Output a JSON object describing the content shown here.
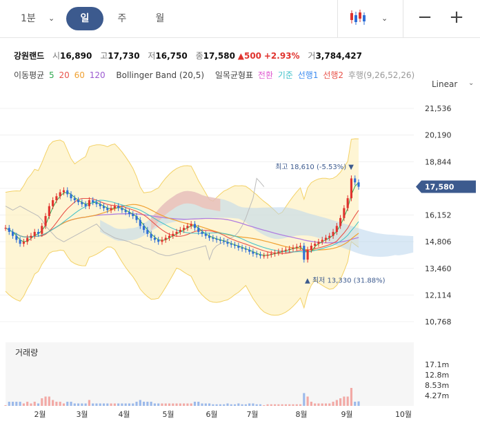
{
  "toolbar": {
    "interval_label": "1분",
    "tabs": [
      "일",
      "주",
      "월"
    ],
    "active_tab": "일"
  },
  "quote": {
    "name": "강원랜드",
    "open_label": "시",
    "open": "16,890",
    "high_label": "고",
    "high": "17,730",
    "low_label": "저",
    "low": "16,750",
    "close_label": "종",
    "close": "17,580",
    "change": "500",
    "change_pct": "+2.93%",
    "volume_label": "거",
    "volume": "3,784,427"
  },
  "indicators": {
    "ma_label": "이동평균",
    "ma_periods": [
      "5",
      "20",
      "60",
      "120"
    ],
    "ma_colors": [
      "#2fa84f",
      "#e8534a",
      "#f0a030",
      "#9b59d0"
    ],
    "bollinger_label": "Bollinger Band (20,5)",
    "ichimoku_label": "일목균형표",
    "ichimoku_items": [
      "전환",
      "기준",
      "선행1",
      "선행2"
    ],
    "ichimoku_colors": [
      "#e05bd0",
      "#3cc0c9",
      "#3d8cf0",
      "#e8534a"
    ],
    "ichimoku_lag": "후행",
    "ichimoku_lag_color": "#999999",
    "ichimoku_params": "(9,26,52,26)",
    "scale_label": "Linear"
  },
  "chart_data": {
    "type": "candlestick",
    "y_ticks": [
      "21,536",
      "20,190",
      "18,844",
      "17,580",
      "16,152",
      "14,806",
      "13,460",
      "12,114",
      "10,768"
    ],
    "y_range": [
      10768,
      21536
    ],
    "current_price": "17,580",
    "max_annotation": "최고 18,610 (-5.53%)",
    "min_annotation": "최저 13,330 (31.88%)",
    "x_labels": [
      "2월",
      "3월",
      "4월",
      "5월",
      "6월",
      "7월",
      "8월",
      "9월",
      "10월"
    ],
    "close_series": [
      15500,
      15300,
      15100,
      14900,
      14700,
      14800,
      15000,
      15100,
      15300,
      15200,
      15600,
      16100,
      16600,
      16900,
      17100,
      17300,
      17400,
      17200,
      17000,
      16900,
      16800,
      16700,
      16600,
      16900,
      16800,
      16700,
      16600,
      16500,
      16400,
      16500,
      16600,
      16500,
      16400,
      16300,
      16200,
      16100,
      15900,
      15600,
      15400,
      15200,
      15000,
      14900,
      14800,
      14900,
      15000,
      15100,
      15200,
      15300,
      15400,
      15500,
      15600,
      15700,
      15500,
      15300,
      15200,
      15100,
      15000,
      14950,
      14900,
      14850,
      14800,
      14700,
      14650,
      14600,
      14500,
      14450,
      14400,
      14300,
      14200,
      14150,
      14100,
      14100,
      14150,
      14200,
      14250,
      14300,
      14350,
      14400,
      14450,
      14500,
      14550,
      14600,
      13900,
      14400,
      14600,
      14700,
      14800,
      14900,
      15000,
      15100,
      15300,
      15600,
      16000,
      16500,
      17000,
      18000,
      17800,
      17580
    ],
    "volume": {
      "title": "거래량",
      "y_ticks": [
        "17.1m",
        "12.8m",
        "8.53m",
        "4.27m"
      ]
    }
  }
}
